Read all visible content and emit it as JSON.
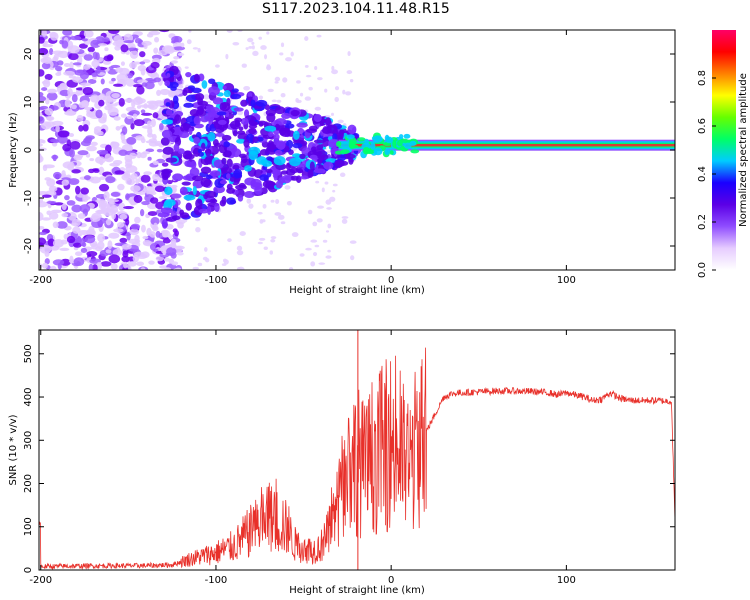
{
  "title": "S117.2023.104.11.48.R15",
  "colors": {
    "snr_line": "#e8302a",
    "axis": "#000000",
    "spectro_band": "#e83030"
  },
  "chart_data": [
    {
      "type": "heatmap",
      "xlabel": "Height of straight line (km)",
      "ylabel": "Frequency (Hz)",
      "xlim": [
        -201,
        162
      ],
      "ylim": [
        -25,
        25
      ],
      "xticks": [
        -200,
        -100,
        0,
        100
      ],
      "yticks": [
        -20,
        -10,
        0,
        10,
        20
      ],
      "colorbar": {
        "label": "Normalized spectral amplitude",
        "range": [
          0,
          1
        ],
        "ticks": [
          "0.0",
          "0.2",
          "0.4",
          "0.6",
          "0.8"
        ],
        "colormap": [
          "#ffffff",
          "#e6ccff",
          "#8f4dff",
          "#5b00e6",
          "#1a00ff",
          "#00ccff",
          "#00ff66",
          "#66ff00",
          "#ffff00",
          "#ff8000",
          "#ff0000",
          "#ff0066"
        ]
      },
      "features": {
        "carrier_frequency_hz": 1,
        "carrier_visible_from_km": -30,
        "noise_region_km": [
          -201,
          -120
        ],
        "scattered_region_km": [
          -130,
          -20
        ]
      }
    },
    {
      "type": "line",
      "xlabel": "Height of straight line (km)",
      "ylabel": "SNR (10 * v/v)",
      "xlim": [
        -201,
        162
      ],
      "ylim": [
        0,
        555
      ],
      "xticks": [
        -200,
        -100,
        0,
        100
      ],
      "yticks": [
        0,
        100,
        200,
        300,
        400,
        500
      ],
      "series": [
        {
          "x": [
            -200,
            -180,
            -160,
            -140,
            -125,
            -115,
            -100,
            -90,
            -80,
            -70,
            -62,
            -55,
            -50,
            -45,
            -40,
            -35,
            -30,
            -25,
            -20,
            -15,
            -10,
            -5,
            0,
            5,
            10,
            15,
            20,
            25,
            30,
            35,
            40,
            50,
            60,
            70,
            80,
            90,
            95,
            100,
            105,
            110,
            115,
            120,
            125,
            130,
            135,
            140,
            150,
            160,
            162
          ],
          "values": [
            8,
            9,
            10,
            10,
            12,
            25,
            40,
            55,
            90,
            120,
            110,
            60,
            50,
            45,
            55,
            90,
            150,
            230,
            260,
            230,
            270,
            280,
            300,
            270,
            240,
            290,
            320,
            360,
            400,
            408,
            410,
            412,
            414,
            414,
            413,
            410,
            405,
            410,
            405,
            400,
            392,
            395,
            410,
            398,
            393,
            392,
            392,
            390,
            110
          ]
        }
      ]
    }
  ]
}
